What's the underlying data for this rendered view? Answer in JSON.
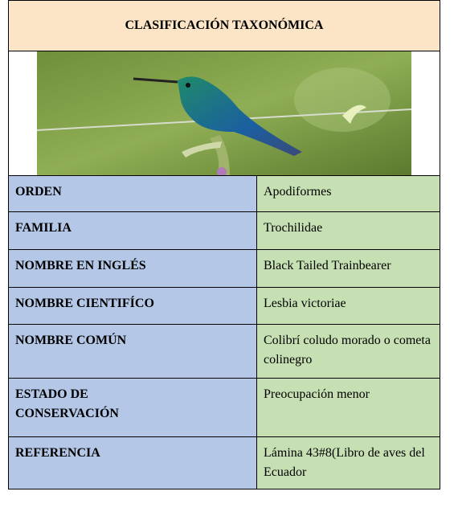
{
  "header": {
    "title": "CLASIFICACIÓN TAXONÓMICA"
  },
  "table": {
    "rows": [
      [
        "ORDEN",
        "Apodiformes"
      ],
      [
        "FAMILIA",
        "Trochilidae"
      ],
      [
        "NOMBRE EN INGLÉS",
        "Black Tailed Trainbearer"
      ],
      [
        "NOMBRE CIENTIFÍCO",
        "Lesbia victoriae"
      ],
      [
        "NOMBRE COMÚN",
        "Colibrí coludo morado o cometa colinegro"
      ],
      [
        "ESTADO DE CONSERVACIÓN",
        "Preocupación menor"
      ],
      [
        "REFERENCIA",
        "Lámina 43#8(Libro de aves del Ecuador"
      ]
    ]
  }
}
